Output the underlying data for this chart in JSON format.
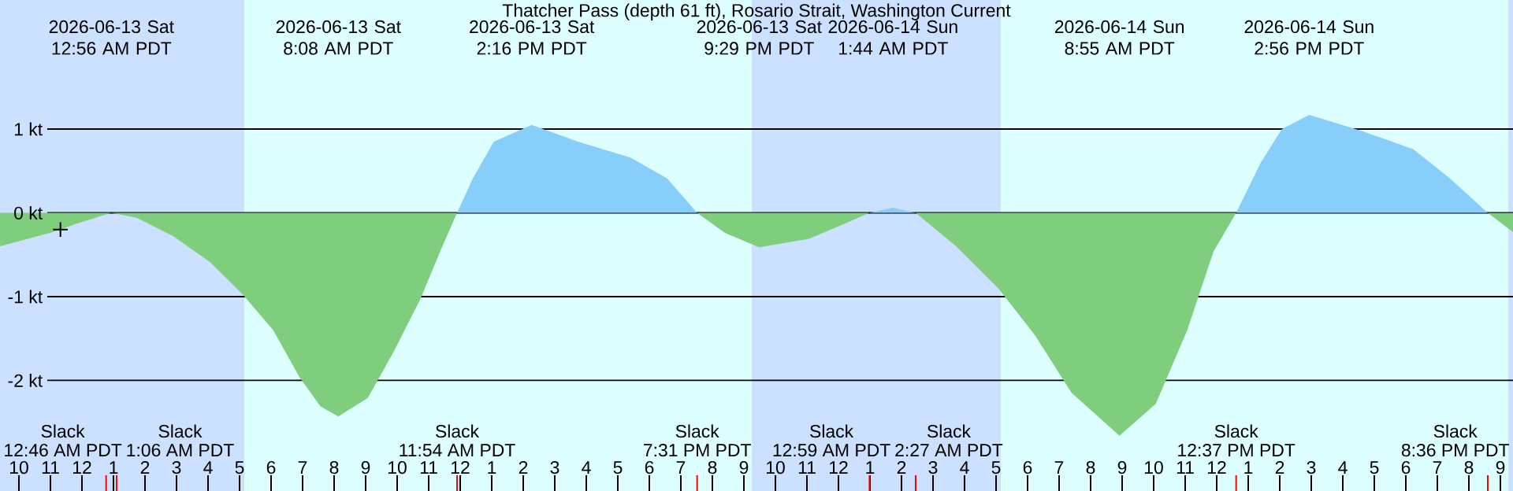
{
  "chart_data": {
    "type": "area",
    "title": "Thatcher Pass (depth 61 ft), Rosario Strait, Washington Current",
    "xlim": [
      "2026-06-12T21:24",
      "2026-06-14T21:24"
    ],
    "ylim": [
      -3.32,
      2.54
    ],
    "xticks": [
      {
        "value": "2026-06-12T22:00",
        "label": "10"
      },
      {
        "value": "2026-06-12T23:00",
        "label": "11"
      },
      {
        "value": "2026-06-13T00:00",
        "label": "12"
      },
      {
        "value": "2026-06-13T01:00",
        "label": "1"
      },
      {
        "value": "2026-06-13T02:00",
        "label": "2"
      },
      {
        "value": "2026-06-13T03:00",
        "label": "3"
      },
      {
        "value": "2026-06-13T04:00",
        "label": "4"
      },
      {
        "value": "2026-06-13T05:00",
        "label": "5"
      },
      {
        "value": "2026-06-13T06:00",
        "label": "6"
      },
      {
        "value": "2026-06-13T07:00",
        "label": "7"
      },
      {
        "value": "2026-06-13T08:00",
        "label": "8"
      },
      {
        "value": "2026-06-13T09:00",
        "label": "9"
      },
      {
        "value": "2026-06-13T10:00",
        "label": "10"
      },
      {
        "value": "2026-06-13T11:00",
        "label": "11"
      },
      {
        "value": "2026-06-13T12:00",
        "label": "12"
      },
      {
        "value": "2026-06-13T13:00",
        "label": "1"
      },
      {
        "value": "2026-06-13T14:00",
        "label": "2"
      },
      {
        "value": "2026-06-13T15:00",
        "label": "3"
      },
      {
        "value": "2026-06-13T16:00",
        "label": "4"
      },
      {
        "value": "2026-06-13T17:00",
        "label": "5"
      },
      {
        "value": "2026-06-13T18:00",
        "label": "6"
      },
      {
        "value": "2026-06-13T19:00",
        "label": "7"
      },
      {
        "value": "2026-06-13T20:00",
        "label": "8"
      },
      {
        "value": "2026-06-13T21:00",
        "label": "9"
      },
      {
        "value": "2026-06-13T22:00",
        "label": "10"
      },
      {
        "value": "2026-06-13T23:00",
        "label": "11"
      },
      {
        "value": "2026-06-14T00:00",
        "label": "12"
      },
      {
        "value": "2026-06-14T01:00",
        "label": "1"
      },
      {
        "value": "2026-06-14T02:00",
        "label": "2"
      },
      {
        "value": "2026-06-14T03:00",
        "label": "3"
      },
      {
        "value": "2026-06-14T04:00",
        "label": "4"
      },
      {
        "value": "2026-06-14T05:00",
        "label": "5"
      },
      {
        "value": "2026-06-14T06:00",
        "label": "6"
      },
      {
        "value": "2026-06-14T07:00",
        "label": "7"
      },
      {
        "value": "2026-06-14T08:00",
        "label": "8"
      },
      {
        "value": "2026-06-14T09:00",
        "label": "9"
      },
      {
        "value": "2026-06-14T10:00",
        "label": "10"
      },
      {
        "value": "2026-06-14T11:00",
        "label": "11"
      },
      {
        "value": "2026-06-14T12:00",
        "label": "12"
      },
      {
        "value": "2026-06-14T13:00",
        "label": "1"
      },
      {
        "value": "2026-06-14T14:00",
        "label": "2"
      },
      {
        "value": "2026-06-14T15:00",
        "label": "3"
      },
      {
        "value": "2026-06-14T16:00",
        "label": "4"
      },
      {
        "value": "2026-06-14T17:00",
        "label": "5"
      },
      {
        "value": "2026-06-14T18:00",
        "label": "6"
      },
      {
        "value": "2026-06-14T19:00",
        "label": "7"
      },
      {
        "value": "2026-06-14T20:00",
        "label": "8"
      },
      {
        "value": "2026-06-14T21:00",
        "label": "9"
      },
      {
        "value": "2026-06-13T00:46",
        "label": null
      },
      {
        "value": "2026-06-13T01:06",
        "label": null
      },
      {
        "value": "2026-06-13T11:54",
        "label": null
      },
      {
        "value": "2026-06-13T19:31",
        "label": null
      },
      {
        "value": "2026-06-14T00:59",
        "label": null
      },
      {
        "value": "2026-06-14T02:27",
        "label": null
      },
      {
        "value": "2026-06-14T12:37",
        "label": null
      },
      {
        "value": "2026-06-14T20:36",
        "label": null
      }
    ],
    "yticks": [
      {
        "value": 1,
        "label": "1 kt"
      },
      {
        "value": 0,
        "label": "0 kt"
      },
      {
        "value": -1,
        "label": "-1 kt"
      },
      {
        "value": -2,
        "label": "-2 kt"
      }
    ],
    "x2lim": [
      "2026-06-12T21:24",
      "2026-06-14T21:24"
    ],
    "x2ticks": [
      {
        "value": "2026-06-13T00:56",
        "label": "2026-06-13 Sat 12:56 AM PDT"
      },
      {
        "value": "2026-06-13T08:08",
        "label": "2026-06-13 Sat 8:08 AM PDT"
      },
      {
        "value": "2026-06-13T14:16",
        "label": "2026-06-13 Sat 2:16 PM PDT"
      },
      {
        "value": "2026-06-13T21:29",
        "label": "2026-06-13 Sat 9:29 PM PDT"
      },
      {
        "value": "2026-06-14T01:44",
        "label": "2026-06-14 Sun 1:44 AM PDT"
      },
      {
        "value": "2026-06-14T08:55",
        "label": "2026-06-14 Sun 8:55 AM PDT"
      },
      {
        "value": "2026-06-14T14:56",
        "label": "2026-06-14 Sun 2:56 PM PDT"
      }
    ],
    "grid": "y",
    "bands": [
      {
        "axis": "x",
        "from": "2026-06-12T21:24",
        "to": "2026-06-13T05:09",
        "color": "#cce0ff"
      },
      {
        "axis": "x",
        "from": "2026-06-13T21:15",
        "to": "2026-06-14T05:09",
        "color": "#cce0ff"
      },
      {
        "axis": "x",
        "from": "2026-06-14T21:15",
        "to": "2026-06-14T21:24",
        "color": "#cce0ff"
      }
    ],
    "series": [
      {
        "color": "#7fce7e",
        "x": [
          "2026-06-12T21:24",
          "2026-06-12T23:04",
          "2026-06-12T23:54",
          "2026-06-13T00:56",
          "2026-06-13T01:44",
          "2026-06-13T02:54",
          "2026-06-13T04:04",
          "2026-06-13T05:04",
          "2026-06-13T06:04",
          "2026-06-13T06:54",
          "2026-06-13T07:34",
          "2026-06-13T08:08",
          "2026-06-13T09:04",
          "2026-06-13T09:54",
          "2026-06-13T10:44",
          "2026-06-13T11:24",
          "2026-06-13T11:54",
          null,
          "2026-06-13T19:31",
          "2026-06-13T20:24",
          "2026-06-13T21:29",
          "2026-06-13T23:04",
          "2026-06-14T00:04",
          "2026-06-14T00:59",
          null,
          "2026-06-14T02:27",
          "2026-06-14T03:44",
          "2026-06-14T05:04",
          "2026-06-14T06:14",
          "2026-06-14T07:24",
          "2026-06-14T08:55",
          "2026-06-14T10:04",
          "2026-06-14T11:04",
          "2026-06-14T11:54",
          "2026-06-14T12:37",
          null,
          "2026-06-14T20:36",
          "2026-06-14T21:24"
        ],
        "values": [
          -0.4,
          -0.23,
          -0.12,
          0,
          -0.06,
          -0.28,
          -0.59,
          -0.96,
          -1.4,
          -1.96,
          -2.31,
          -2.43,
          -2.21,
          -1.65,
          -1.03,
          -0.43,
          0,
          null,
          0,
          -0.24,
          -0.41,
          -0.31,
          -0.15,
          0,
          null,
          0,
          -0.4,
          -0.9,
          -1.46,
          -2.15,
          -2.66,
          -2.28,
          -1.4,
          -0.46,
          0,
          null,
          0,
          -0.23
        ]
      },
      {
        "color": "#87cefa",
        "x": [
          "2026-06-13T11:54",
          "2026-06-13T12:24",
          "2026-06-13T13:04",
          "2026-06-13T14:16",
          "2026-06-13T15:44",
          "2026-06-13T17:24",
          "2026-06-13T18:34",
          "2026-06-13T19:31",
          null,
          "2026-06-14T00:59",
          "2026-06-14T01:44",
          "2026-06-14T02:27",
          null,
          "2026-06-14T12:37",
          "2026-06-14T13:24",
          "2026-06-14T14:04",
          "2026-06-14T14:56",
          "2026-06-14T16:34",
          "2026-06-14T18:14",
          "2026-06-14T19:24",
          "2026-06-14T20:36"
        ],
        "values": [
          0,
          0.41,
          0.85,
          1.05,
          0.85,
          0.66,
          0.41,
          0,
          null,
          0,
          0.06,
          0,
          null,
          0,
          0.6,
          1.0,
          1.17,
          0.98,
          0.76,
          0.41,
          0
        ]
      },
      {
        "type": "scatter",
        "color": "#000000",
        "marker": "cross",
        "x": [
          "2026-06-12T23:19"
        ],
        "values": [
          -0.2
        ]
      }
    ],
    "annotations": [
      "Slack",
      "12:46 AM PDT",
      "Slack",
      "1:06 AM PDT",
      "Slack",
      "11:54 AM PDT",
      "Slack",
      "7:31 PM PDT",
      "Slack",
      "12:59 AM PDT",
      "Slack",
      "2:27 AM PDT",
      "Slack",
      "12:37 PM PDT",
      "Slack",
      "8:36 PM PDT"
    ]
  }
}
